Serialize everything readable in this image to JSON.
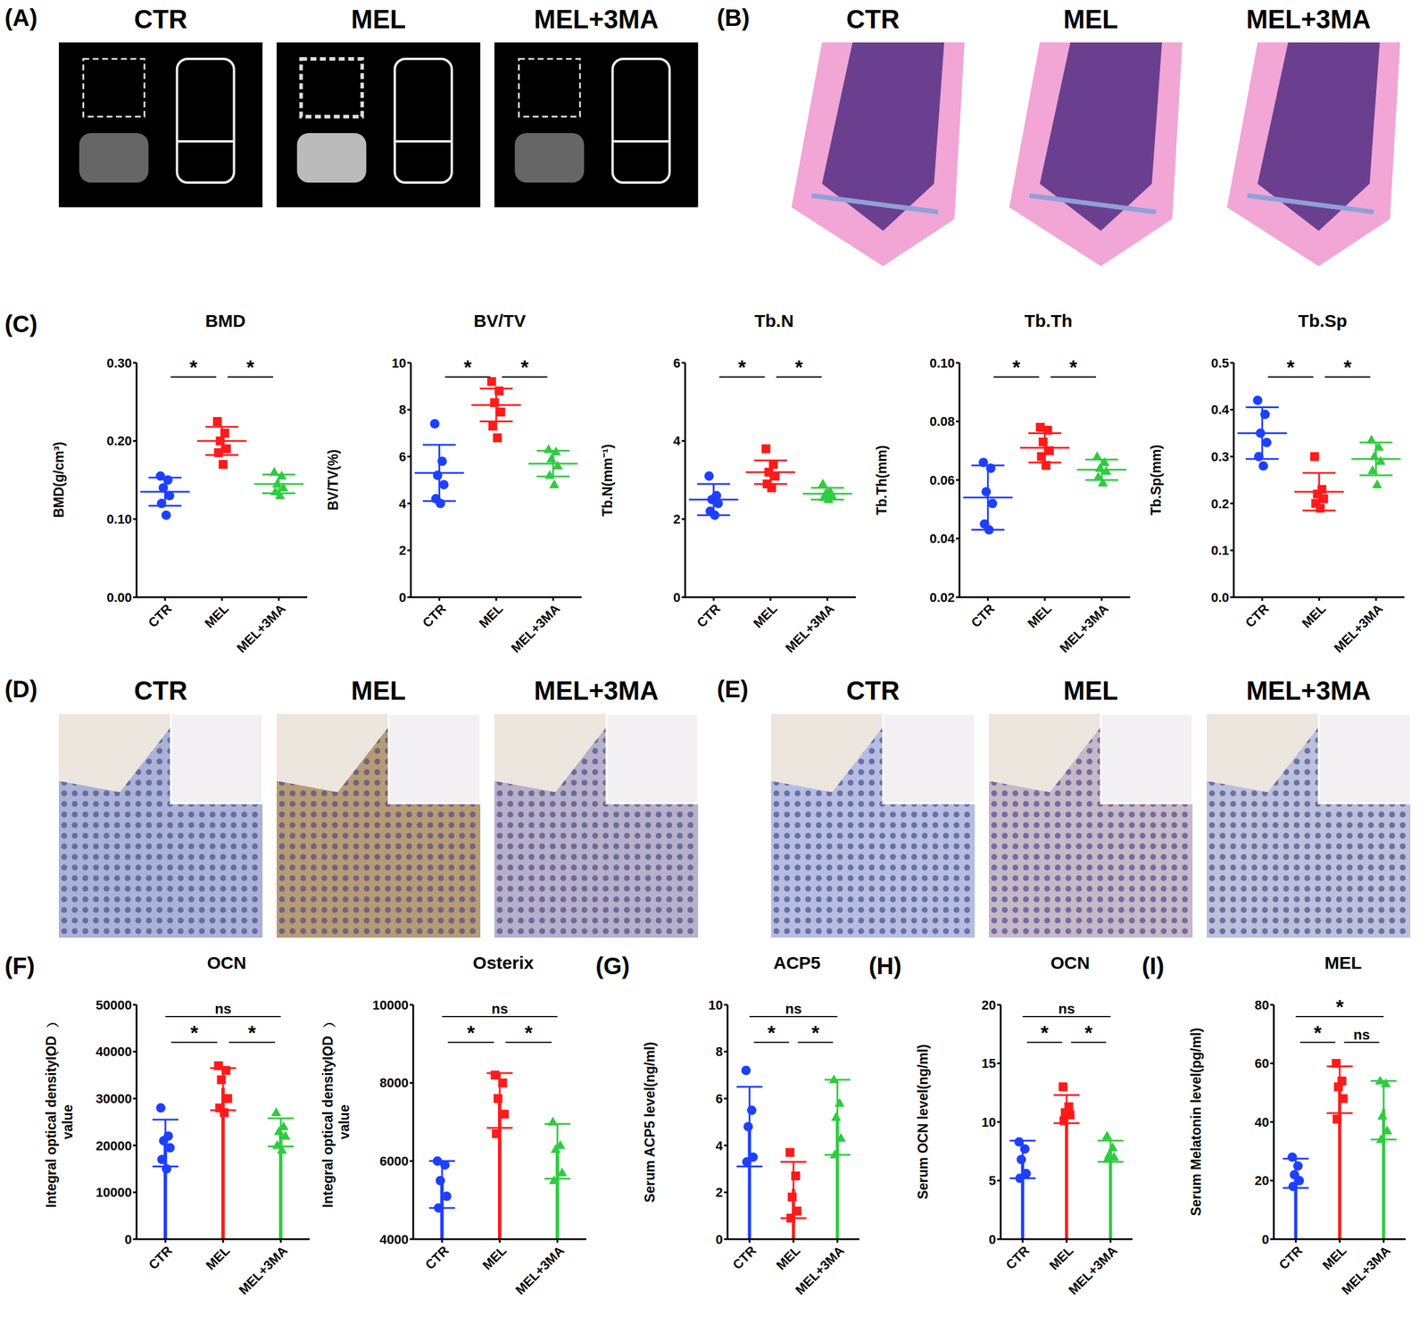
{
  "image_panels": [
    {
      "panel": "(A)",
      "labels": [
        "CTR",
        "MEL",
        "MEL+3MA"
      ]
    },
    {
      "panel": "(B)",
      "labels": [
        "CTR",
        "MEL",
        "MEL+3MA"
      ]
    },
    {
      "panel": "(D)",
      "labels": [
        "CTR",
        "MEL",
        "MEL+3MA"
      ]
    },
    {
      "panel": "(E)",
      "labels": [
        "CTR",
        "MEL",
        "MEL+3MA"
      ]
    }
  ],
  "chart_data": [
    {
      "type": "scatter",
      "panel": "(C)",
      "title": "BMD",
      "y_label": "BMD(g/cm³)",
      "categories": [
        "CTR",
        "MEL",
        "MEL+3MA"
      ],
      "colors": [
        "#1f3fff",
        "#ff1a1a",
        "#2ecc40"
      ],
      "ylim": [
        0,
        0.3
      ],
      "yticks": [
        {
          "value": 0,
          "label": "0.00"
        },
        {
          "value": 0.1,
          "label": "0.10"
        },
        {
          "value": 0.2,
          "label": "0.20"
        },
        {
          "value": 0.3,
          "label": "0.30"
        }
      ],
      "points": [
        [
          0.155,
          0.15,
          0.14,
          0.13,
          0.12,
          0.105
        ],
        [
          0.225,
          0.21,
          0.2,
          0.19,
          0.185,
          0.17
        ],
        [
          0.16,
          0.155,
          0.145,
          0.14,
          0.135,
          0.13
        ]
      ],
      "means": [
        0.135,
        0.2,
        0.145
      ],
      "sd": [
        0.018,
        0.018,
        0.012
      ],
      "comparisons": [
        {
          "from": 0,
          "to": 1,
          "label": "*"
        },
        {
          "from": 1,
          "to": 2,
          "label": "*"
        }
      ]
    },
    {
      "type": "scatter",
      "title": "BV/TV",
      "y_label": "BV/TV(%)",
      "categories": [
        "CTR",
        "MEL",
        "MEL+3MA"
      ],
      "colors": [
        "#1f3fff",
        "#ff1a1a",
        "#2ecc40"
      ],
      "ylim": [
        0,
        10
      ],
      "yticks": [
        0,
        2,
        4,
        6,
        8,
        10
      ],
      "points": [
        [
          7.4,
          5.8,
          5.2,
          4.8,
          4.2,
          4.0
        ],
        [
          9.2,
          8.8,
          8.3,
          7.9,
          7.3,
          6.8
        ],
        [
          6.3,
          6.2,
          5.9,
          5.6,
          5.2,
          4.8
        ]
      ],
      "means": [
        5.3,
        8.2,
        5.7
      ],
      "sd": [
        1.2,
        0.7,
        0.55
      ],
      "comparisons": [
        {
          "from": 0,
          "to": 1,
          "label": "*"
        },
        {
          "from": 1,
          "to": 2,
          "label": "*"
        }
      ]
    },
    {
      "type": "scatter",
      "title": "Tb.N",
      "y_label": "Tb.N(mm⁻¹)",
      "categories": [
        "CTR",
        "MEL",
        "MEL+3MA"
      ],
      "colors": [
        "#1f3fff",
        "#ff1a1a",
        "#2ecc40"
      ],
      "ylim": [
        0,
        6
      ],
      "yticks": [
        0,
        2,
        4,
        6
      ],
      "points": [
        [
          3.1,
          2.6,
          2.5,
          2.4,
          2.2,
          2.1
        ],
        [
          3.8,
          3.4,
          3.2,
          3.1,
          2.9,
          2.8
        ],
        [
          2.9,
          2.7,
          2.65,
          2.6,
          2.55,
          2.5
        ]
      ],
      "means": [
        2.5,
        3.2,
        2.65
      ],
      "sd": [
        0.4,
        0.3,
        0.15
      ],
      "comparisons": [
        {
          "from": 0,
          "to": 1,
          "label": "*"
        },
        {
          "from": 1,
          "to": 2,
          "label": "*"
        }
      ]
    },
    {
      "type": "scatter",
      "title": "Tb.Th",
      "y_label": "Tb.Th(mm)",
      "categories": [
        "CTR",
        "MEL",
        "MEL+3MA"
      ],
      "colors": [
        "#1f3fff",
        "#ff1a1a",
        "#2ecc40"
      ],
      "ylim": [
        0.02,
        0.1
      ],
      "yticks": [
        0.02,
        0.04,
        0.06,
        0.08,
        {
          "value": 0.1,
          "label": "0.10"
        }
      ],
      "points": [
        [
          0.066,
          0.064,
          0.056,
          0.052,
          0.045,
          0.043
        ],
        [
          0.078,
          0.077,
          0.073,
          0.07,
          0.068,
          0.065
        ],
        [
          0.068,
          0.066,
          0.064,
          0.063,
          0.061,
          0.059
        ]
      ],
      "means": [
        0.054,
        0.071,
        0.0635
      ],
      "sd": [
        0.011,
        0.005,
        0.0035
      ],
      "comparisons": [
        {
          "from": 0,
          "to": 1,
          "label": "*"
        },
        {
          "from": 1,
          "to": 2,
          "label": "*"
        }
      ]
    },
    {
      "type": "scatter",
      "title": "Tb.Sp",
      "y_label": "Tb.Sp(mm)",
      "categories": [
        "CTR",
        "MEL",
        "MEL+3MA"
      ],
      "colors": [
        "#1f3fff",
        "#ff1a1a",
        "#2ecc40"
      ],
      "ylim": [
        0,
        0.5
      ],
      "yticks": [
        {
          "value": 0,
          "label": "0.0"
        },
        0.1,
        0.2,
        0.3,
        0.4,
        0.5
      ],
      "points": [
        [
          0.42,
          0.39,
          0.35,
          0.33,
          0.3,
          0.28
        ],
        [
          0.3,
          0.23,
          0.22,
          0.21,
          0.2,
          0.19
        ],
        [
          0.335,
          0.32,
          0.3,
          0.29,
          0.27,
          0.24
        ]
      ],
      "means": [
        0.35,
        0.225,
        0.295
      ],
      "sd": [
        0.055,
        0.04,
        0.035
      ],
      "comparisons": [
        {
          "from": 0,
          "to": 1,
          "label": "*"
        },
        {
          "from": 1,
          "to": 2,
          "label": "*"
        }
      ]
    },
    {
      "type": "bar",
      "panel": "(F)",
      "title": "OCN",
      "y_label": "Integral optical density（IOD） value",
      "categories": [
        "CTR",
        "MEL",
        "MEL+3MA"
      ],
      "colors": [
        "#1f3fff",
        "#ff1a1a",
        "#2ecc40"
      ],
      "ylim": [
        0,
        50000
      ],
      "yticks": [
        0,
        10000,
        20000,
        30000,
        40000,
        50000
      ],
      "points": [
        [
          28000,
          22000,
          21000,
          19500,
          17000,
          15000
        ],
        [
          37000,
          36000,
          34000,
          30000,
          28000,
          27000
        ],
        [
          27000,
          24000,
          23000,
          22000,
          20000,
          19000
        ]
      ],
      "means": [
        20500,
        32000,
        22800
      ],
      "sd": [
        5000,
        4500,
        3000
      ],
      "comparisons": [
        {
          "from": 0,
          "to": 2,
          "label": "ns"
        },
        {
          "from": 0,
          "to": 1,
          "label": "*"
        },
        {
          "from": 1,
          "to": 2,
          "label": "*"
        }
      ]
    },
    {
      "type": "bar",
      "title": "Osterix",
      "y_label": "Integral optical density（IOD） value",
      "categories": [
        "CTR",
        "MEL",
        "MEL+3MA"
      ],
      "colors": [
        "#1f3fff",
        "#ff1a1a",
        "#2ecc40"
      ],
      "ylim": [
        4000,
        10000
      ],
      "yticks": [
        4000,
        6000,
        8000,
        10000
      ],
      "points": [
        [
          6000,
          5900,
          5500,
          5100,
          4800
        ],
        [
          8200,
          8000,
          7600,
          7200,
          6700
        ],
        [
          7000,
          6400,
          6300,
          5700,
          5500
        ]
      ],
      "means": [
        5400,
        7550,
        6250
      ],
      "sd": [
        600,
        700,
        700
      ],
      "comparisons": [
        {
          "from": 0,
          "to": 2,
          "label": "ns"
        },
        {
          "from": 0,
          "to": 1,
          "label": "*"
        },
        {
          "from": 1,
          "to": 2,
          "label": "*"
        }
      ]
    },
    {
      "type": "bar",
      "panel": "(G)",
      "title": "ACP5",
      "y_label": "Serum ACP5 level(ng/ml)",
      "categories": [
        "CTR",
        "MEL",
        "MEL+3MA"
      ],
      "colors": [
        "#1f3fff",
        "#ff1a1a",
        "#2ecc40"
      ],
      "ylim": [
        0,
        10
      ],
      "yticks": [
        0,
        2,
        4,
        6,
        8,
        10
      ],
      "points": [
        [
          7.2,
          5.5,
          4.8,
          3.5,
          3.3
        ],
        [
          3.7,
          2.7,
          1.8,
          1.2,
          0.9
        ],
        [
          6.8,
          5.8,
          5.2,
          4.3,
          3.6
        ]
      ],
      "means": [
        4.8,
        2.1,
        5.2
      ],
      "sd": [
        1.7,
        1.2,
        1.6
      ],
      "comparisons": [
        {
          "from": 0,
          "to": 2,
          "label": "ns"
        },
        {
          "from": 0,
          "to": 1,
          "label": "*"
        },
        {
          "from": 1,
          "to": 2,
          "label": "*"
        }
      ]
    },
    {
      "type": "bar",
      "panel": "(H)",
      "title": "OCN",
      "y_label": "Serum OCN level(ng/ml)",
      "categories": [
        "CTR",
        "MEL",
        "MEL+3MA"
      ],
      "colors": [
        "#1f3fff",
        "#ff1a1a",
        "#2ecc40"
      ],
      "ylim": [
        0,
        20
      ],
      "yticks": [
        0,
        5,
        10,
        15,
        20
      ],
      "points": [
        [
          8.3,
          7.7,
          6.8,
          5.6,
          5.2
        ],
        [
          13.0,
          11.3,
          10.8,
          10.6,
          10.1
        ],
        [
          8.8,
          7.8,
          7.2,
          7.0,
          6.9
        ]
      ],
      "means": [
        6.8,
        11.1,
        7.5
      ],
      "sd": [
        1.6,
        1.2,
        0.9
      ],
      "comparisons": [
        {
          "from": 0,
          "to": 2,
          "label": "ns"
        },
        {
          "from": 0,
          "to": 1,
          "label": "*"
        },
        {
          "from": 1,
          "to": 2,
          "label": "*"
        }
      ]
    },
    {
      "type": "bar",
      "panel": "(I)",
      "title": "MEL",
      "y_label": "Serum Melatonin level(pg/ml)",
      "categories": [
        "CTR",
        "MEL",
        "MEL+3MA"
      ],
      "colors": [
        "#1f3fff",
        "#ff1a1a",
        "#2ecc40"
      ],
      "ylim": [
        0,
        80
      ],
      "yticks": [
        0,
        20,
        40,
        60,
        80
      ],
      "points": [
        [
          28,
          25,
          22,
          20,
          18
        ],
        [
          60,
          54,
          52,
          48,
          41
        ],
        [
          54,
          53,
          42,
          37,
          34
        ]
      ],
      "means": [
        22.5,
        51,
        44
      ],
      "sd": [
        5,
        8,
        10
      ],
      "comparisons": [
        {
          "from": 0,
          "to": 2,
          "label": "*"
        },
        {
          "from": 0,
          "to": 1,
          "label": "*"
        },
        {
          "from": 1,
          "to": 2,
          "label": "ns"
        }
      ]
    }
  ]
}
